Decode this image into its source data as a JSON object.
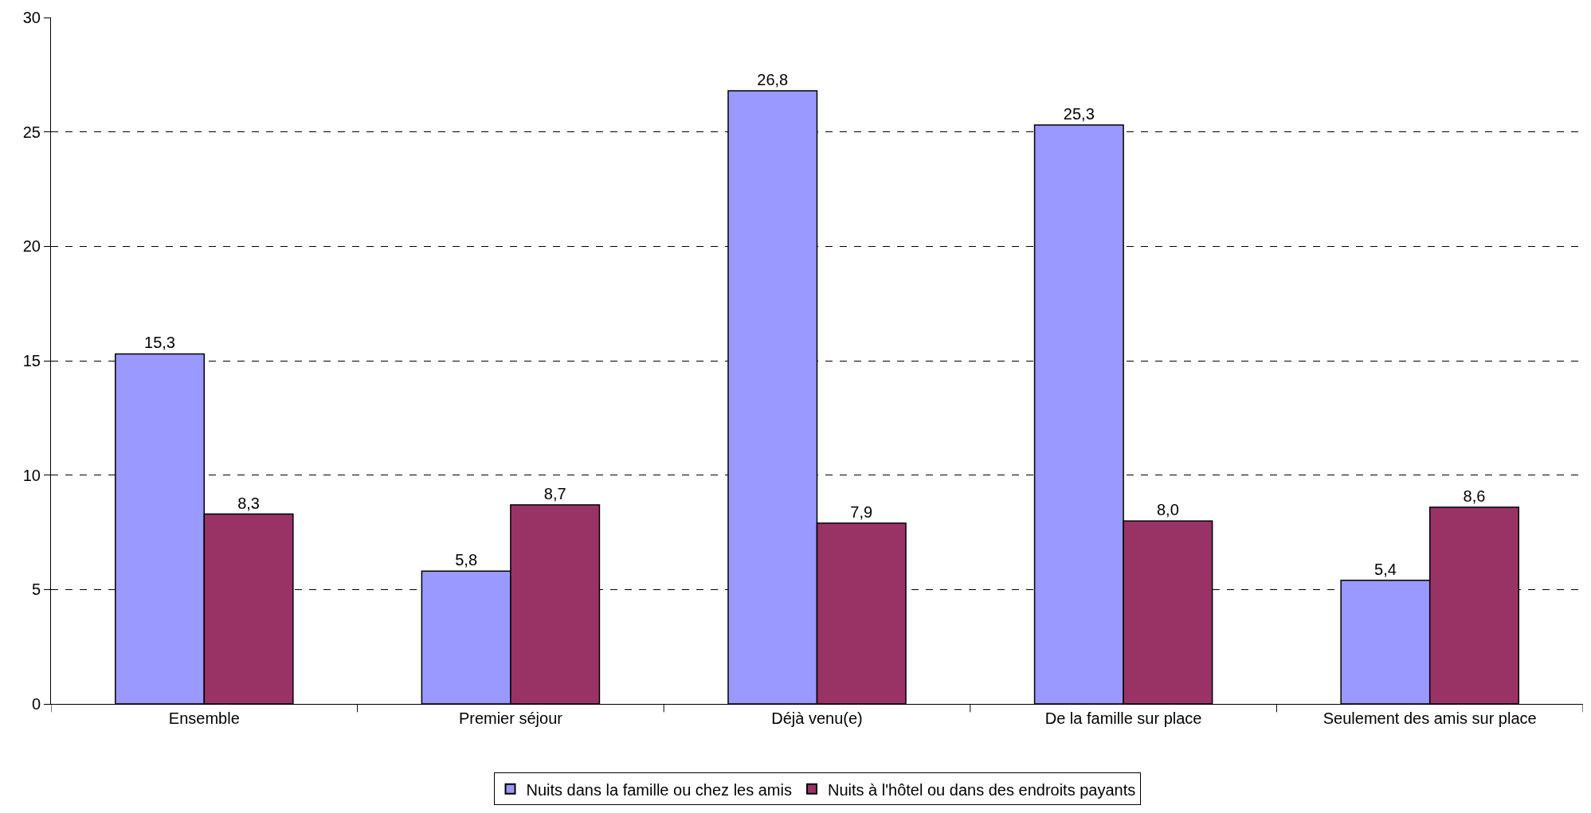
{
  "chart_data": {
    "type": "bar",
    "categories": [
      "Ensemble",
      "Premier séjour",
      "Déjà venu(e)",
      "De la famille sur place",
      "Seulement des amis sur place"
    ],
    "series": [
      {
        "name": "Nuits dans la famille ou chez les amis",
        "color": "#9999ff",
        "values": [
          15.3,
          5.8,
          26.8,
          25.3,
          5.4
        ],
        "value_labels": [
          "15,3",
          "5,8",
          "26,8",
          "25,3",
          "5,4"
        ]
      },
      {
        "name": "Nuits à l'hôtel ou dans des endroits payants",
        "color": "#993366",
        "values": [
          8.3,
          8.7,
          7.9,
          8.0,
          8.6
        ],
        "value_labels": [
          "8,3",
          "8,7",
          "7,9",
          "8,0",
          "8,6"
        ]
      }
    ],
    "ylim": [
      0,
      30
    ],
    "yticks": [
      0,
      5,
      10,
      15,
      20,
      25,
      30
    ],
    "grid": "y",
    "legend": "bottom"
  }
}
